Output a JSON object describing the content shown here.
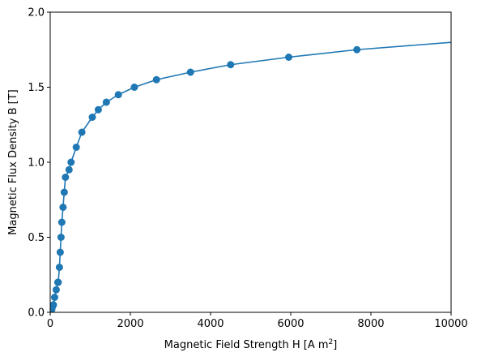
{
  "chart_data": {
    "type": "line",
    "title": "",
    "xlabel_main": "Magnetic Field Strength H [A m",
    "xlabel_sup": "2",
    "xlabel_close": "]",
    "ylabel": "Magnetic Flux Density B [T]",
    "xlim": [
      0,
      10000
    ],
    "ylim": [
      0,
      2.0
    ],
    "xticks": [
      0,
      2000,
      4000,
      6000,
      8000,
      10000
    ],
    "xtick_labels": [
      "0",
      "2000",
      "4000",
      "6000",
      "8000",
      "10000"
    ],
    "yticks": [
      0.0,
      0.5,
      1.0,
      1.5,
      2.0
    ],
    "ytick_labels": [
      "0.0",
      "0.5",
      "1.0",
      "1.5",
      "2.0"
    ],
    "grid": false,
    "color": "#1f77b4",
    "series": [
      {
        "marker": "circle",
        "x": [
          0,
          40,
          60,
          80,
          110,
          150,
          190,
          200,
          230,
          250,
          270,
          290,
          320,
          350,
          380,
          470,
          520,
          650,
          790,
          1050,
          1200,
          1400,
          1700,
          2100,
          2650,
          3500,
          4500,
          5950,
          7650,
          11000
        ],
        "y": [
          0.0,
          0.02,
          0.04,
          0.05,
          0.1,
          0.15,
          0.2,
          0.2,
          0.3,
          0.4,
          0.5,
          0.6,
          0.7,
          0.8,
          0.9,
          0.95,
          1.0,
          1.1,
          1.2,
          1.3,
          1.35,
          1.4,
          1.45,
          1.5,
          1.55,
          1.6,
          1.65,
          1.7,
          1.75,
          1.82
        ]
      }
    ]
  }
}
